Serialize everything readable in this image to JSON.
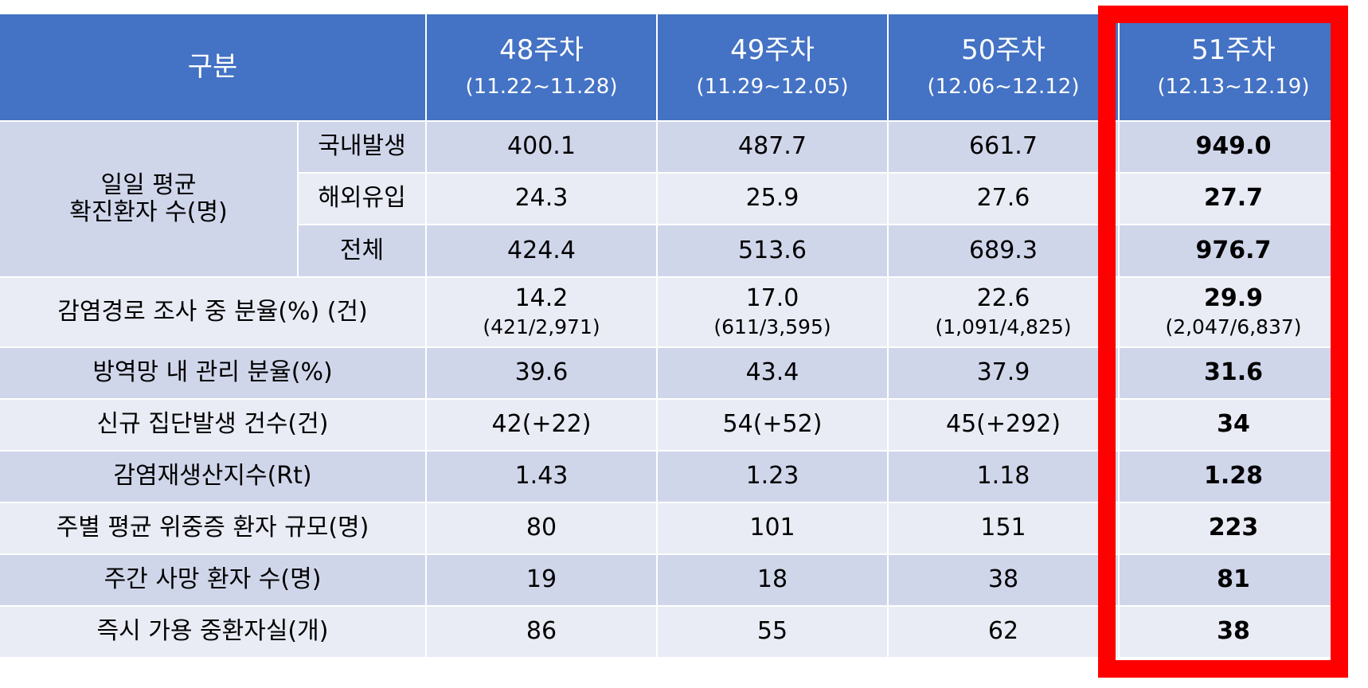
{
  "header": {
    "category": "구분",
    "weeks": [
      {
        "label": "48주차",
        "range": "(11.22~11.28)"
      },
      {
        "label": "49주차",
        "range": "(11.29~12.05)"
      },
      {
        "label": "50주차",
        "range": "(12.06~12.12)"
      },
      {
        "label": "51주차",
        "range": "(12.13~12.19)"
      }
    ]
  },
  "group": {
    "label_line1": "일일 평균",
    "label_line2": "확진환자 수(명)",
    "rows": [
      {
        "label": "국내발생",
        "values": [
          "400.1",
          "487.7",
          "661.7",
          "949.0"
        ]
      },
      {
        "label": "해외유입",
        "values": [
          "24.3",
          "25.9",
          "27.6",
          "27.7"
        ]
      },
      {
        "label": "전체",
        "values": [
          "424.4",
          "513.6",
          "689.3",
          "976.7"
        ]
      }
    ]
  },
  "rows": [
    {
      "label": "감염경로 조사 중 분율(%) (건)",
      "values": [
        "14.2",
        "17.0",
        "22.6",
        "29.9"
      ],
      "subvalues": [
        "(421/2,971)",
        "(611/3,595)",
        "(1,091/4,825)",
        "(2,047/6,837)"
      ]
    },
    {
      "label": "방역망 내 관리 분율(%)",
      "values": [
        "39.6",
        "43.4",
        "37.9",
        "31.6"
      ]
    },
    {
      "label": "신규 집단발생 건수(건)",
      "values": [
        "42(+22)",
        "54(+52)",
        "45(+292)",
        "34"
      ]
    },
    {
      "label": "감염재생산지수(Rt)",
      "values": [
        "1.43",
        "1.23",
        "1.18",
        "1.28"
      ]
    },
    {
      "label": "주별 평균 위중증 환자 규모(명)",
      "values": [
        "80",
        "101",
        "151",
        "223"
      ]
    },
    {
      "label": "주간 사망 환자 수(명)",
      "values": [
        "19",
        "18",
        "38",
        "81"
      ]
    },
    {
      "label": "즉시 가용 중환자실(개)",
      "values": [
        "86",
        "55",
        "62",
        "38"
      ]
    }
  ],
  "colors": {
    "header": "#4472c4",
    "row_dark": "#d0d6ea",
    "row_light": "#e9ecf5",
    "highlight_border": "#ff0000"
  }
}
